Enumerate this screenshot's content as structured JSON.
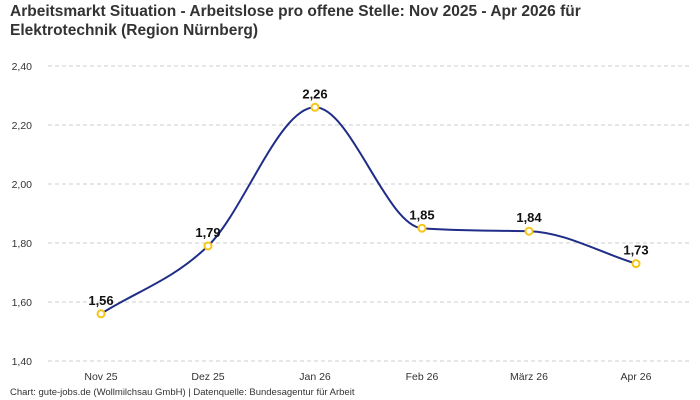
{
  "title": "Arbeitsmarkt Situation - Arbeitslose pro offene Stelle: Nov 2025 - Apr 2026 für Elektrotechnik (Region Nürnberg)",
  "footer": "Chart: gute-jobs.de (Wollmilchsau GmbH) | Datenquelle: Bundesagentur für Arbeit",
  "colors": {
    "line": "#1f2d87",
    "marker": "#f5c518",
    "grid": "#cccccc"
  },
  "chart_data": {
    "type": "line",
    "title": "Arbeitsmarkt Situation - Arbeitslose pro offene Stelle: Nov 2025 - Apr 2026 für Elektrotechnik (Region Nürnberg)",
    "categories": [
      "Nov 25",
      "Dez 25",
      "Jan 26",
      "Feb 26",
      "März 26",
      "Apr 26"
    ],
    "values": [
      1.56,
      1.79,
      2.26,
      1.85,
      1.84,
      1.73
    ],
    "value_labels": [
      "1,56",
      "1,79",
      "2,26",
      "1,85",
      "1,84",
      "1,73"
    ],
    "ylim": [
      1.4,
      2.4
    ],
    "yticks": [
      1.4,
      1.6,
      1.8,
      2.0,
      2.2,
      2.4
    ],
    "ytick_labels": [
      "1,40",
      "1,60",
      "1,80",
      "2,00",
      "2,20",
      "2,40"
    ],
    "xlabel": "",
    "ylabel": "",
    "grid": true,
    "smooth": true
  }
}
